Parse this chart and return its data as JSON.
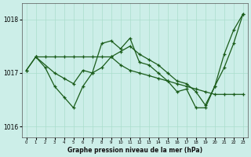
{
  "background_color": "#cceee8",
  "grid_color": "#aaddcc",
  "line_color": "#1a5c1a",
  "xlabel": "Graphe pression niveau de la mer (hPa)",
  "ylim": [
    1015.8,
    1018.3
  ],
  "xlim": [
    -0.5,
    23.5
  ],
  "yticks": [
    1016,
    1017,
    1018
  ],
  "xticks": [
    0,
    1,
    2,
    3,
    4,
    5,
    6,
    7,
    8,
    9,
    10,
    11,
    12,
    13,
    14,
    15,
    16,
    17,
    18,
    19,
    20,
    21,
    22,
    23
  ],
  "series1": {
    "x": [
      0,
      1,
      2,
      3,
      4,
      5,
      6,
      7,
      8,
      9,
      10,
      11,
      12,
      13,
      14,
      15,
      16,
      17,
      18,
      19,
      20,
      21,
      22,
      23
    ],
    "y": [
      1017.05,
      1017.3,
      1017.3,
      1017.3,
      1017.3,
      1017.3,
      1017.3,
      1017.3,
      1017.3,
      1017.3,
      1017.15,
      1017.05,
      1017.0,
      1016.95,
      1016.9,
      1016.85,
      1016.8,
      1016.75,
      1016.7,
      1016.65,
      1016.6,
      1016.6,
      1016.6,
      1016.6
    ]
  },
  "series2": {
    "x": [
      0,
      1,
      2,
      3,
      4,
      5,
      6,
      7,
      8,
      9,
      10,
      11,
      12,
      13,
      14,
      15,
      16,
      17,
      18,
      19,
      20,
      21,
      22,
      23
    ],
    "y": [
      1017.05,
      1017.3,
      1017.1,
      1016.75,
      1016.55,
      1016.35,
      1016.75,
      1017.0,
      1017.55,
      1017.6,
      1017.45,
      1017.65,
      1017.2,
      1017.15,
      1017.0,
      1016.85,
      1016.65,
      1016.7,
      1016.35,
      1016.35,
      1016.75,
      1017.35,
      1017.8,
      1018.1
    ]
  },
  "series3": {
    "x": [
      1,
      3,
      4,
      5,
      6,
      7,
      8,
      9,
      10,
      11,
      12,
      13,
      14,
      15,
      16,
      17,
      18,
      19,
      20,
      21,
      22,
      23
    ],
    "y": [
      1017.3,
      1017.0,
      1016.9,
      1016.8,
      1017.05,
      1017.0,
      1017.1,
      1017.3,
      1017.4,
      1017.5,
      1017.35,
      1017.25,
      1017.15,
      1017.0,
      1016.85,
      1016.8,
      1016.65,
      1016.4,
      1016.75,
      1017.1,
      1017.55,
      1018.1
    ]
  }
}
